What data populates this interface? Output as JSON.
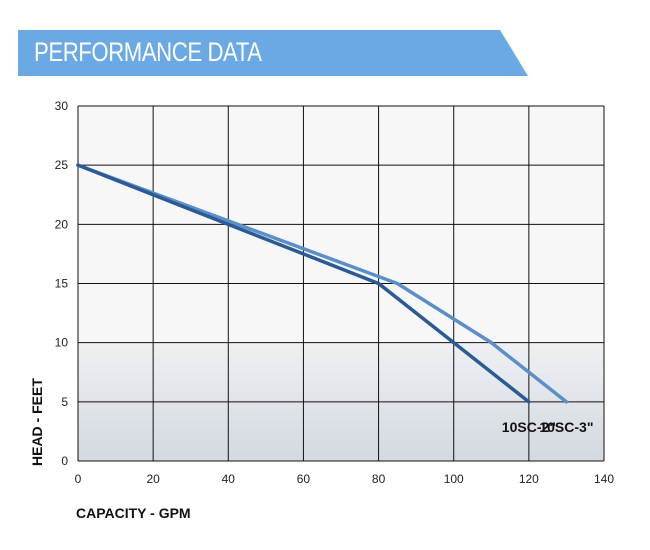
{
  "header": {
    "title": "PERFORMANCE DATA",
    "banner_color": "#6aa9e4"
  },
  "chart_data": {
    "type": "line",
    "title": "",
    "xlabel": "CAPACITY - GPM",
    "ylabel": "HEAD - FEET",
    "xlim": [
      0,
      140
    ],
    "ylim": [
      0,
      30
    ],
    "xticks": [
      0,
      20,
      40,
      60,
      80,
      100,
      120,
      140
    ],
    "yticks": [
      0,
      5,
      10,
      15,
      20,
      25,
      30
    ],
    "grid": true,
    "series": [
      {
        "name": "10SC-2\"",
        "color": "#2b5b94",
        "points": [
          [
            0,
            25
          ],
          [
            80,
            15
          ],
          [
            120,
            5
          ]
        ]
      },
      {
        "name": "10SC-3\"",
        "color": "#5b8fc8",
        "points": [
          [
            0,
            25
          ],
          [
            85,
            15
          ],
          [
            110,
            10
          ],
          [
            130,
            5
          ]
        ]
      }
    ]
  }
}
